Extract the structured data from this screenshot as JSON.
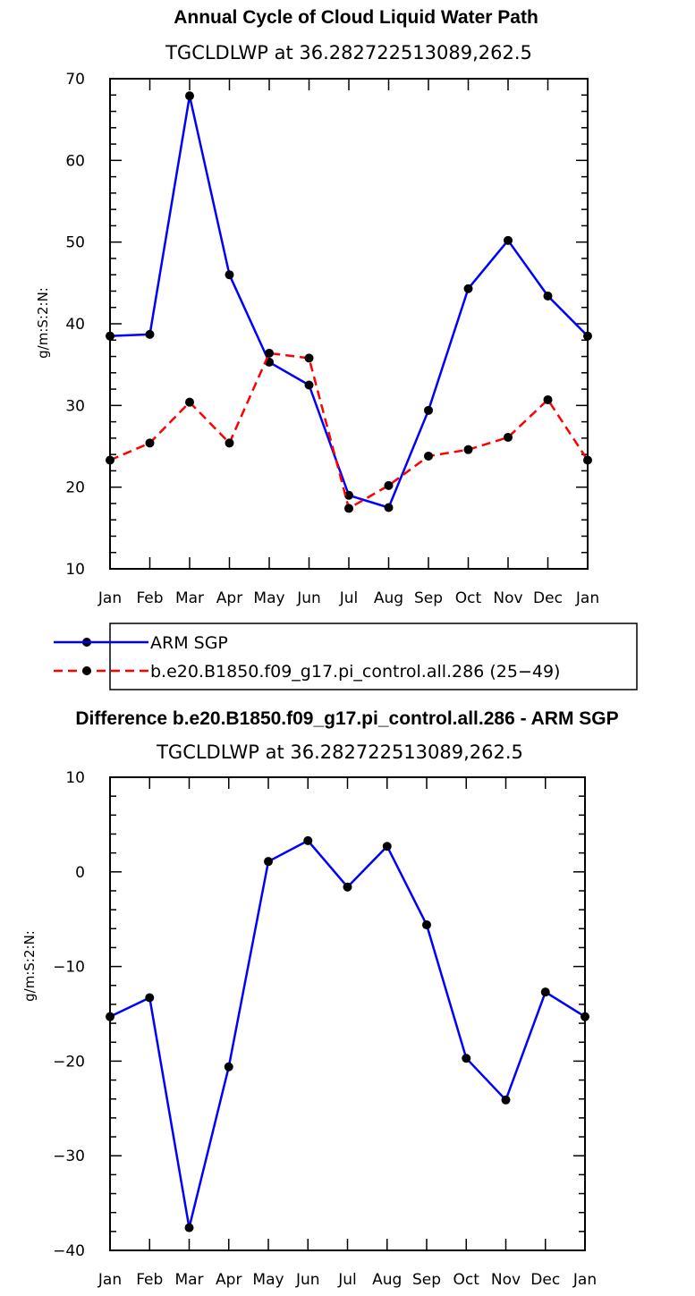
{
  "chart_data": [
    {
      "type": "line",
      "title": "Annual Cycle of Cloud Liquid Water Path",
      "subtitle": "TGCLDLWP  at  36.282722513089,262.5",
      "ylabel": "g/m:S:2:N:",
      "xlabel": "",
      "categories": [
        "Jan",
        "Feb",
        "Mar",
        "Apr",
        "May",
        "Jun",
        "Jul",
        "Aug",
        "Sep",
        "Oct",
        "Nov",
        "Dec",
        "Jan"
      ],
      "ylim": [
        10,
        70
      ],
      "yticks": [
        10,
        20,
        30,
        40,
        50,
        60,
        70
      ],
      "yticks_minor": 2,
      "series": [
        {
          "name": "ARM SGP",
          "color": "#0000ff",
          "dash": "solid",
          "values": [
            38.5,
            38.7,
            67.9,
            46.0,
            35.3,
            32.5,
            19.0,
            17.5,
            29.4,
            44.3,
            50.2,
            43.4,
            38.5
          ]
        },
        {
          "name": "b.e20.B1850.f09_g17.pi_control.all.286 (25−49)",
          "color": "#ff0000",
          "dash": "dashed",
          "values": [
            23.3,
            25.4,
            30.4,
            25.4,
            36.4,
            35.8,
            17.4,
            20.2,
            23.8,
            24.6,
            26.1,
            30.7,
            23.3
          ]
        }
      ],
      "legend": {
        "placement": "bottom",
        "items": [
          {
            "label": "ARM SGP"
          },
          {
            "label": "b.e20.B1850.f09_g17.pi_control.all.286 (25−49)"
          }
        ]
      }
    },
    {
      "type": "line",
      "title": "Difference b.e20.B1850.f09_g17.pi_control.all.286 - ARM SGP",
      "subtitle": "TGCLDLWP  at  36.282722513089,262.5",
      "ylabel": "g/m:S:2:N:",
      "xlabel": "",
      "categories": [
        "Jan",
        "Feb",
        "Mar",
        "Apr",
        "May",
        "Jun",
        "Jul",
        "Aug",
        "Sep",
        "Oct",
        "Nov",
        "Dec",
        "Jan"
      ],
      "ylim": [
        -40,
        10
      ],
      "yticks": [
        -40,
        -30,
        -20,
        -10,
        0,
        10
      ],
      "ytick_labels": [
        "−40",
        "−30",
        "−20",
        "−10",
        "0",
        "10"
      ],
      "yticks_minor": 2,
      "series": [
        {
          "name": "Difference",
          "color": "#0000ff",
          "dash": "solid",
          "values": [
            -15.3,
            -13.3,
            -37.6,
            -20.6,
            1.1,
            3.3,
            -1.6,
            2.7,
            -5.6,
            -19.7,
            -24.1,
            -12.7,
            -15.3
          ]
        }
      ]
    }
  ]
}
